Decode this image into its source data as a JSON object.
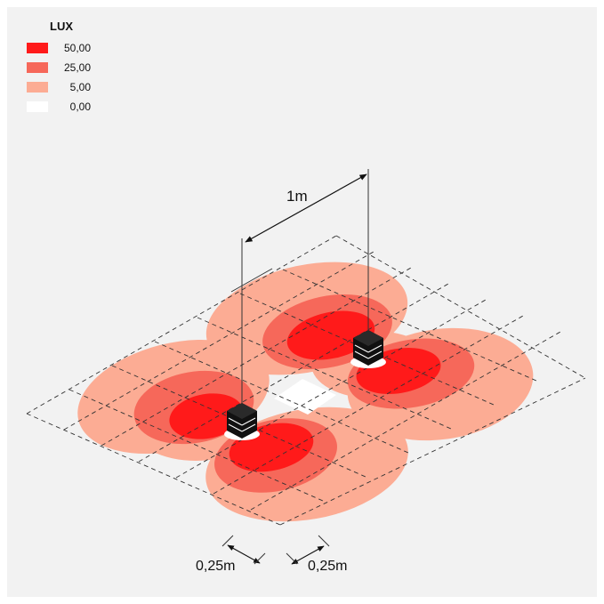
{
  "legend": {
    "title": "LUX",
    "items": [
      {
        "label": "50,00",
        "color": "#ff1a1a"
      },
      {
        "label": "25,00",
        "color": "#f6685a"
      },
      {
        "label": "5,00",
        "color": "#fcac94"
      },
      {
        "label": "0,00",
        "color": "#ffffff"
      }
    ]
  },
  "dimensions": {
    "spacing": "1m",
    "grid_left": "0,25m",
    "grid_right": "0,25m"
  }
}
